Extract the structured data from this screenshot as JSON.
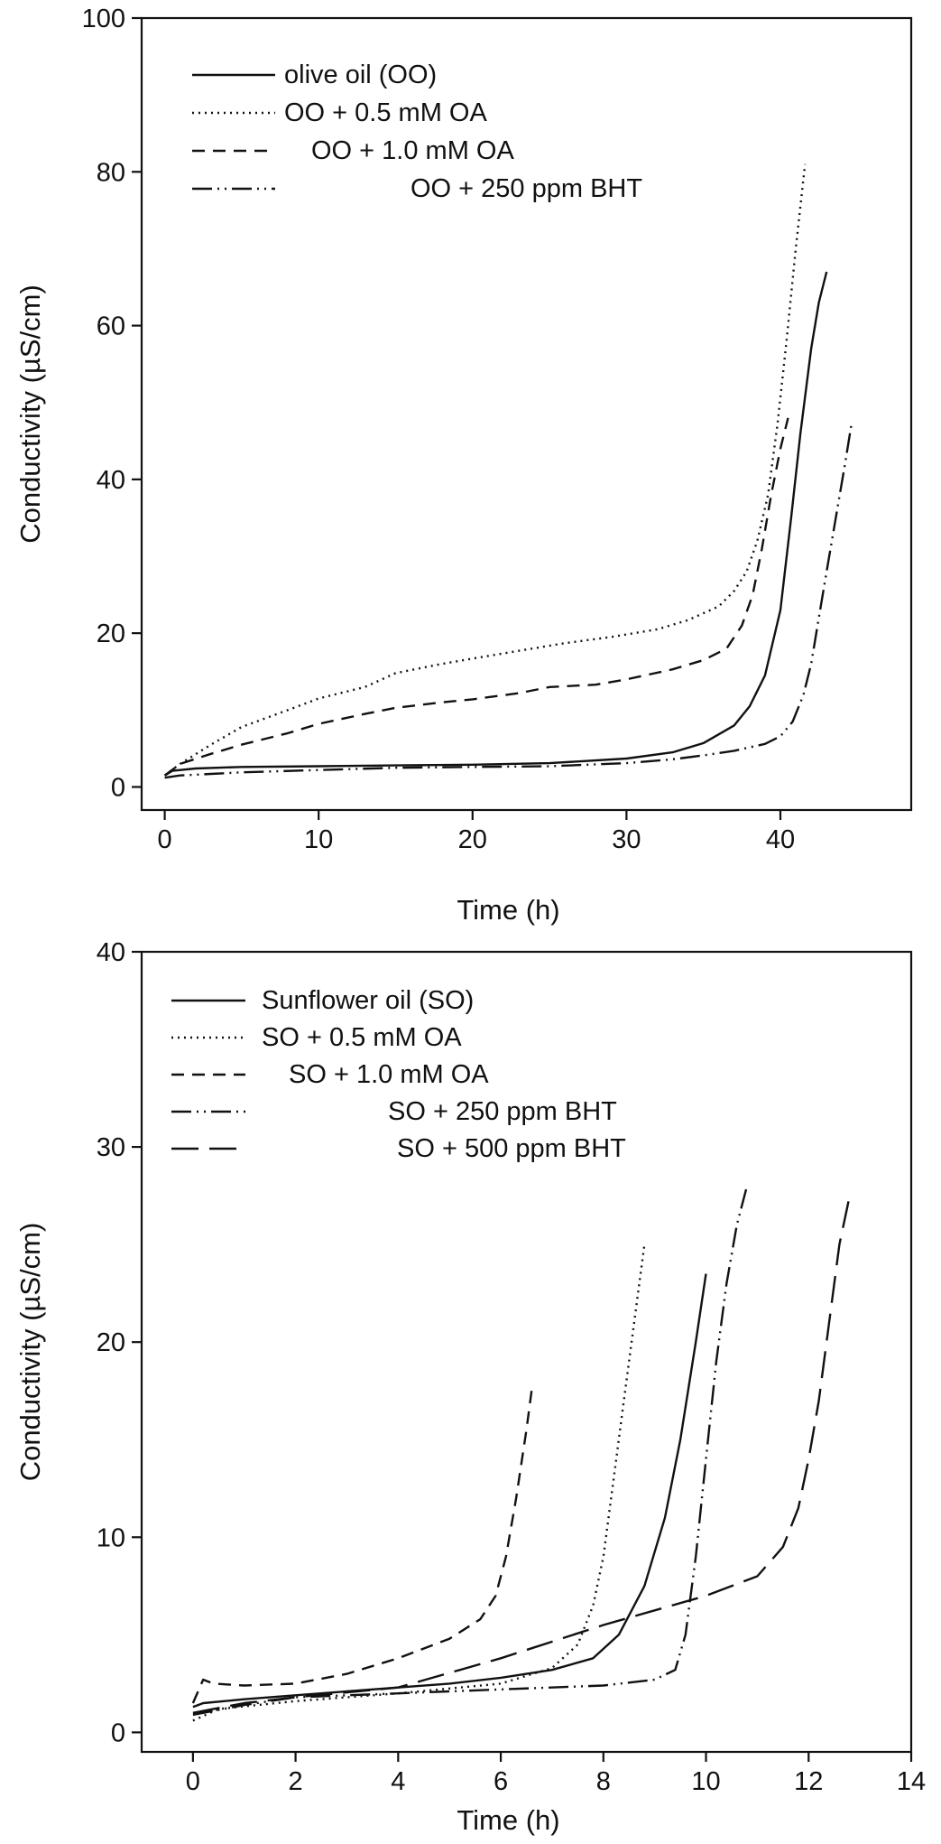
{
  "chart_data": [
    {
      "type": "line",
      "xlabel": "Time (h)",
      "ylabel": "Conductivity (µS/cm)",
      "xlim": [
        -1.5,
        48.5
      ],
      "ylim": [
        -3,
        100
      ],
      "xticks": [
        "0",
        "10",
        "20",
        "30",
        "40"
      ],
      "yticks": [
        "0",
        "20",
        "40",
        "60",
        "80",
        "100"
      ],
      "xtick_values": [
        0,
        10,
        20,
        30,
        40
      ],
      "ytick_values": [
        0,
        20,
        40,
        60,
        80,
        100
      ],
      "legend_position": "top-left",
      "series": [
        {
          "name": "olive oil (OO)",
          "style": "solid",
          "x": [
            0,
            0.5,
            2,
            5,
            10,
            15,
            20,
            25,
            30,
            33,
            35,
            37,
            38,
            39,
            40,
            40.7,
            41.3,
            42,
            42.5,
            43
          ],
          "y": [
            1.5,
            2.1,
            2.4,
            2.6,
            2.7,
            2.8,
            2.9,
            3.1,
            3.7,
            4.5,
            5.7,
            8,
            10.5,
            14.5,
            23,
            35,
            46,
            57,
            63,
            67
          ]
        },
        {
          "name": "OO + 0.5 mM OA",
          "style": "dotted",
          "x": [
            0,
            1,
            3,
            5,
            8,
            10,
            13,
            15,
            18,
            20,
            23,
            26,
            29,
            32,
            34,
            36,
            37,
            37.8,
            38.5,
            39.2,
            39.8,
            40.4,
            41,
            41.6
          ],
          "y": [
            1.5,
            3,
            5.5,
            7.8,
            10,
            11.5,
            13,
            14.8,
            16,
            16.7,
            17.7,
            18.7,
            19.5,
            20.5,
            21.7,
            23.5,
            25.5,
            28,
            32,
            38,
            47,
            58,
            70,
            81
          ]
        },
        {
          "name": "OO + 1.0 mM OA",
          "style": "dashed",
          "x": [
            0,
            1,
            3,
            5,
            8,
            10,
            13,
            15,
            18,
            20,
            23,
            25,
            28,
            30,
            33,
            35,
            36.5,
            37.5,
            38.2,
            38.8,
            39.4,
            40,
            40.5
          ],
          "y": [
            1.5,
            3,
            4.3,
            5.5,
            7,
            8.2,
            9.5,
            10.3,
            11,
            11.4,
            12.2,
            13,
            13.3,
            14,
            15.3,
            16.5,
            18,
            21,
            25,
            31,
            38,
            44,
            48
          ]
        },
        {
          "name": "OO + 250 ppm BHT",
          "style": "dash-dot-dot",
          "x": [
            0,
            1,
            3,
            5,
            10,
            15,
            20,
            25,
            30,
            33,
            35,
            37,
            39,
            40,
            40.8,
            41.5,
            42,
            42.5,
            43,
            43.6,
            44.2,
            44.6
          ],
          "y": [
            1.2,
            1.5,
            1.7,
            1.9,
            2.2,
            2.5,
            2.6,
            2.7,
            3.1,
            3.6,
            4.1,
            4.7,
            5.6,
            6.6,
            8.5,
            12,
            16,
            22,
            28,
            35,
            42,
            47
          ]
        }
      ]
    },
    {
      "type": "line",
      "xlabel": "Time (h)",
      "ylabel": "Conductivity (µS/cm)",
      "xlim": [
        -1,
        14
      ],
      "ylim": [
        -1,
        40
      ],
      "xticks": [
        "0",
        "2",
        "4",
        "6",
        "8",
        "10",
        "12",
        "14"
      ],
      "yticks": [
        "0",
        "10",
        "20",
        "30",
        "40"
      ],
      "xtick_values": [
        0,
        2,
        4,
        6,
        8,
        10,
        12,
        14
      ],
      "ytick_values": [
        0,
        10,
        20,
        30,
        40
      ],
      "legend_position": "top-left",
      "series": [
        {
          "name": "Sunflower oil (SO)",
          "style": "solid",
          "x": [
            0,
            0.2,
            1,
            2,
            3,
            4,
            5,
            6,
            7,
            7.8,
            8.3,
            8.8,
            9.2,
            9.5,
            9.8,
            10
          ],
          "y": [
            1.3,
            1.5,
            1.7,
            1.9,
            2.1,
            2.3,
            2.5,
            2.8,
            3.2,
            3.8,
            5,
            7.5,
            11,
            15,
            20,
            23.5
          ]
        },
        {
          "name": "SO + 0.5 mM OA",
          "style": "dotted",
          "x": [
            0,
            0.5,
            2,
            4,
            6,
            7,
            7.5,
            7.8,
            8,
            8.2,
            8.4,
            8.6,
            8.8
          ],
          "y": [
            0.6,
            1.2,
            1.6,
            2,
            2.5,
            3.3,
            4.5,
            6.5,
            9,
            13,
            17,
            21,
            25
          ]
        },
        {
          "name": "SO + 1.0 mM OA",
          "style": "dashed",
          "x": [
            0,
            0.2,
            0.4,
            1,
            2,
            3,
            4,
            5,
            5.6,
            5.9,
            6.1,
            6.3,
            6.5,
            6.6
          ],
          "y": [
            1.5,
            2.7,
            2.5,
            2.4,
            2.5,
            3,
            3.8,
            4.8,
            5.8,
            7,
            9,
            12,
            15.5,
            17.5
          ]
        },
        {
          "name": "SO + 250 ppm BHT",
          "style": "dash-dot-dot",
          "x": [
            0,
            1,
            2,
            4,
            6,
            8,
            9,
            9.4,
            9.6,
            9.8,
            10,
            10.2,
            10.4,
            10.6,
            10.8
          ],
          "y": [
            0.9,
            1.4,
            1.8,
            2,
            2.2,
            2.4,
            2.7,
            3.2,
            5,
            9,
            14,
            19,
            23,
            26,
            28
          ]
        },
        {
          "name": "SO + 500 ppm BHT",
          "style": "long-dash",
          "x": [
            0,
            1,
            2,
            4,
            6,
            8,
            10,
            11,
            11.5,
            11.8,
            12,
            12.2,
            12.4,
            12.6,
            12.8
          ],
          "y": [
            1,
            1.5,
            1.8,
            2.3,
            3.8,
            5.5,
            7,
            8,
            9.5,
            11.5,
            14,
            17,
            21,
            25,
            27.5
          ]
        }
      ]
    }
  ]
}
